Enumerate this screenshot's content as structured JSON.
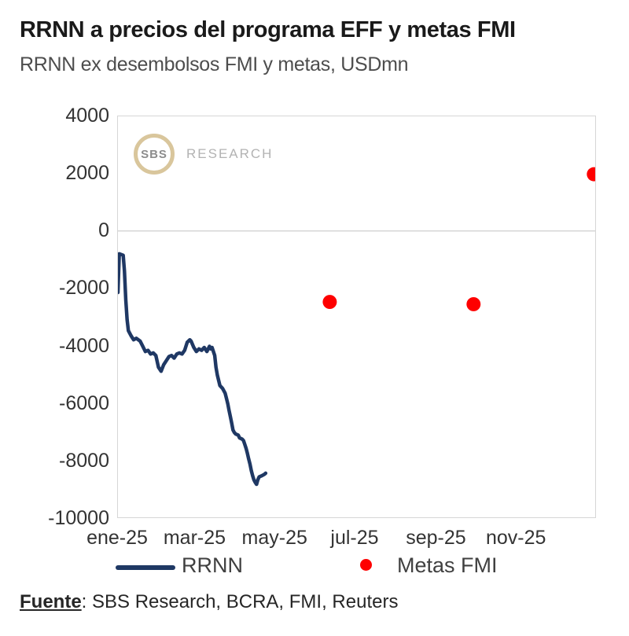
{
  "page": {
    "title": "RRNN a precios del programa EFF y metas FMI",
    "subtitle": "RRNN ex desembolsos FMI y metas, USDmn",
    "source_label": "Fuente",
    "source_rest": ": SBS Research, BCRA, FMI, Reuters"
  },
  "logo": {
    "text": "SBS",
    "suffix": "RESEARCH",
    "ring_color": "#d9c69c"
  },
  "colors": {
    "rrnn_line": "#1f3864",
    "metas_dot": "#fe0000",
    "plot_border": "#d6d6d6",
    "zero_line": "#d6d6d6",
    "axis_text": "#333333"
  },
  "chart_data": {
    "type": "line",
    "title": "RRNN a precios del programa EFF y metas FMI",
    "subtitle": "RRNN ex desembolsos FMI y metas, USDmn",
    "xlabel": "",
    "ylabel": "USDmn",
    "x_unit": "day_of_year_2025",
    "x_range_days": [
      0,
      365
    ],
    "x_ticks": [
      {
        "label": "ene-25",
        "day": 0
      },
      {
        "label": "mar-25",
        "day": 59
      },
      {
        "label": "may-25",
        "day": 120
      },
      {
        "label": "jul-25",
        "day": 181
      },
      {
        "label": "sep-25",
        "day": 243
      },
      {
        "label": "nov-25",
        "day": 304
      }
    ],
    "ylim": [
      -10000,
      4000
    ],
    "y_ticks": [
      4000,
      2000,
      0,
      -2000,
      -4000,
      -6000,
      -8000,
      -10000
    ],
    "grid": "zero line only, full light-gray plot border, no vertical gridlines",
    "legend_position": "bottom",
    "series": [
      {
        "name": "RRNN",
        "type": "line",
        "color": "#1f3864",
        "points": [
          [
            0,
            -2150
          ],
          [
            1,
            -800
          ],
          [
            4,
            -850
          ],
          [
            5,
            -1400
          ],
          [
            6,
            -2400
          ],
          [
            7,
            -3100
          ],
          [
            8,
            -3480
          ],
          [
            10,
            -3660
          ],
          [
            12,
            -3800
          ],
          [
            14,
            -3750
          ],
          [
            17,
            -3850
          ],
          [
            19,
            -4030
          ],
          [
            21,
            -4210
          ],
          [
            23,
            -4170
          ],
          [
            25,
            -4300
          ],
          [
            27,
            -4260
          ],
          [
            29,
            -4350
          ],
          [
            31,
            -4760
          ],
          [
            33,
            -4900
          ],
          [
            35,
            -4670
          ],
          [
            37,
            -4530
          ],
          [
            39,
            -4390
          ],
          [
            41,
            -4350
          ],
          [
            43,
            -4440
          ],
          [
            45,
            -4300
          ],
          [
            47,
            -4260
          ],
          [
            49,
            -4300
          ],
          [
            51,
            -4170
          ],
          [
            53,
            -3890
          ],
          [
            55,
            -3800
          ],
          [
            56,
            -3850
          ],
          [
            58,
            -4070
          ],
          [
            60,
            -4210
          ],
          [
            62,
            -4120
          ],
          [
            64,
            -4170
          ],
          [
            66,
            -4070
          ],
          [
            68,
            -4210
          ],
          [
            69,
            -4120
          ],
          [
            70,
            -4030
          ],
          [
            71,
            -4120
          ],
          [
            72,
            -4070
          ],
          [
            73,
            -4210
          ],
          [
            74,
            -4350
          ],
          [
            75,
            -4760
          ],
          [
            76,
            -5030
          ],
          [
            78,
            -5400
          ],
          [
            80,
            -5500
          ],
          [
            82,
            -5670
          ],
          [
            83,
            -5850
          ],
          [
            84,
            -6040
          ],
          [
            85,
            -6270
          ],
          [
            86,
            -6490
          ],
          [
            87,
            -6720
          ],
          [
            88,
            -6950
          ],
          [
            89,
            -7040
          ],
          [
            90,
            -7090
          ],
          [
            92,
            -7130
          ],
          [
            93,
            -7230
          ],
          [
            95,
            -7270
          ],
          [
            96,
            -7320
          ],
          [
            97,
            -7450
          ],
          [
            98,
            -7590
          ],
          [
            99,
            -7770
          ],
          [
            100,
            -7960
          ],
          [
            101,
            -8140
          ],
          [
            102,
            -8370
          ],
          [
            103,
            -8550
          ],
          [
            104,
            -8690
          ],
          [
            105,
            -8780
          ],
          [
            106,
            -8850
          ],
          [
            107,
            -8690
          ],
          [
            108,
            -8590
          ],
          [
            110,
            -8550
          ],
          [
            112,
            -8500
          ],
          [
            113,
            -8460
          ]
        ]
      },
      {
        "name": "Metas FMI",
        "type": "scatter",
        "color": "#fe0000",
        "marker_radius": 9,
        "points": [
          [
            162,
            -2480
          ],
          [
            272,
            -2560
          ],
          [
            364,
            1980
          ]
        ]
      }
    ]
  }
}
